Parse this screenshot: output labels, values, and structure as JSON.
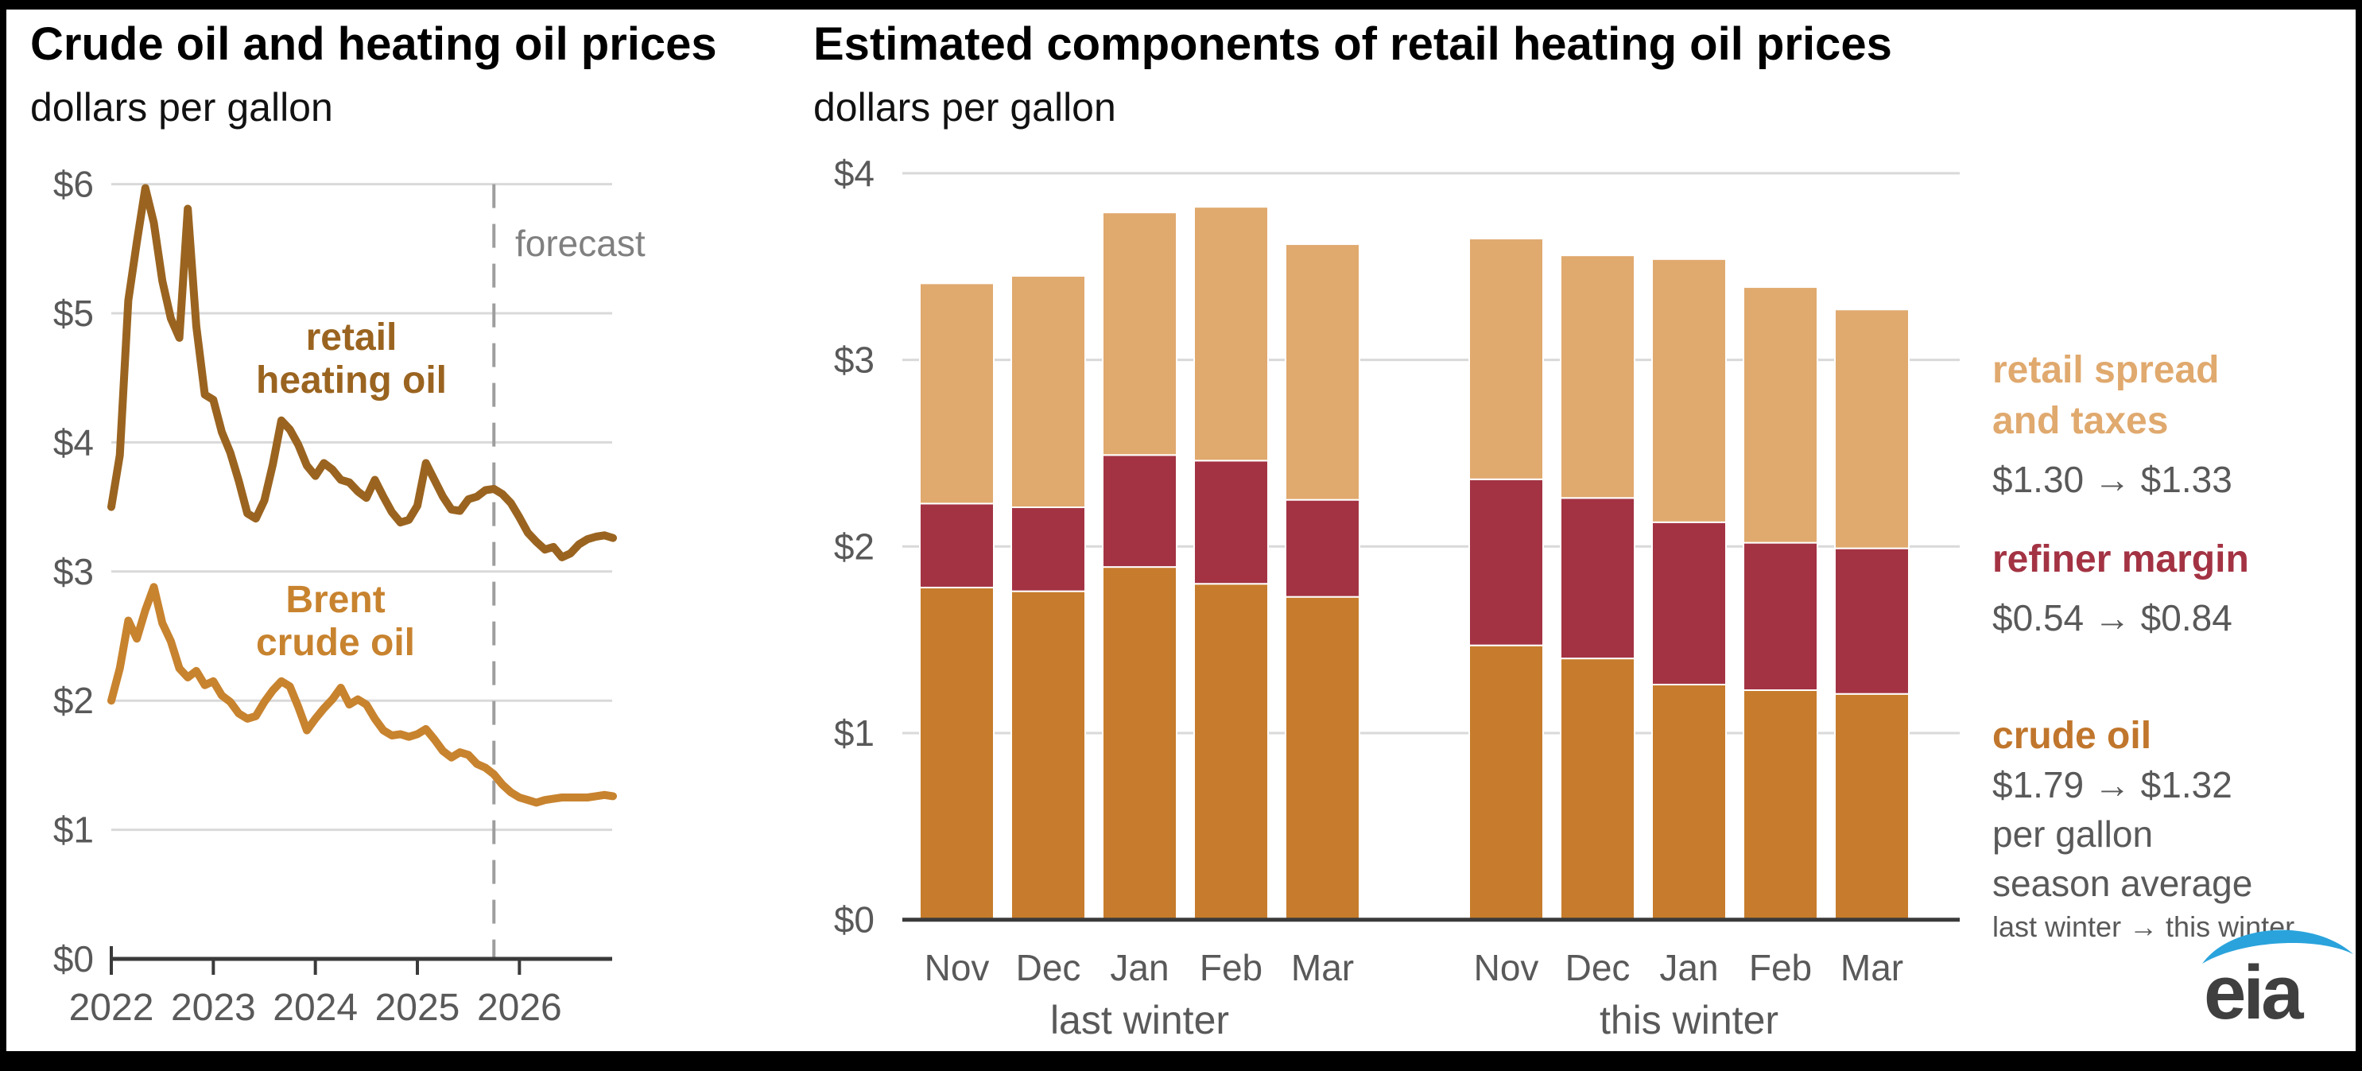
{
  "chart_data": [
    {
      "type": "line",
      "title": "Crude oil and heating oil prices",
      "subtitle": "dollars per gallon",
      "x_start": "2022-01",
      "x_end": "2026-12",
      "x_frequency": "monthly",
      "x_ticks": [
        "2022",
        "2023",
        "2024",
        "2025",
        "2026"
      ],
      "ylim": [
        0,
        6
      ],
      "y_tick_labels": [
        "$0",
        "$1",
        "$2",
        "$3",
        "$4",
        "$5",
        "$6"
      ],
      "grid": "horizontal",
      "forecast_start_index": 45,
      "annotations": {
        "forecast": "forecast",
        "series1_label": [
          "retail",
          "heating oil"
        ],
        "series2_label": [
          "Brent",
          "crude oil"
        ]
      },
      "series": [
        {
          "name": "retail heating oil",
          "color": "#9a6420",
          "values": [
            3.5,
            3.9,
            5.1,
            5.55,
            5.97,
            5.7,
            5.25,
            4.96,
            4.81,
            5.81,
            4.9,
            4.37,
            4.33,
            4.08,
            3.92,
            3.7,
            3.45,
            3.41,
            3.55,
            3.83,
            4.17,
            4.1,
            3.98,
            3.82,
            3.74,
            3.84,
            3.79,
            3.71,
            3.69,
            3.62,
            3.57,
            3.71,
            3.58,
            3.46,
            3.38,
            3.4,
            3.51,
            3.84,
            3.71,
            3.58,
            3.48,
            3.47,
            3.56,
            3.58,
            3.63,
            3.64,
            3.6,
            3.53,
            3.42,
            3.3,
            3.23,
            3.17,
            3.19,
            3.11,
            3.14,
            3.21,
            3.25,
            3.27,
            3.28,
            3.26
          ]
        },
        {
          "name": "Brent crude oil",
          "color": "#c8832f",
          "values": [
            2.0,
            2.25,
            2.62,
            2.48,
            2.7,
            2.88,
            2.6,
            2.46,
            2.25,
            2.18,
            2.23,
            2.12,
            2.15,
            2.04,
            1.99,
            1.9,
            1.86,
            1.88,
            1.99,
            2.08,
            2.15,
            2.11,
            1.95,
            1.77,
            1.86,
            1.94,
            2.01,
            2.1,
            1.97,
            2.01,
            1.97,
            1.86,
            1.77,
            1.73,
            1.74,
            1.72,
            1.74,
            1.78,
            1.7,
            1.61,
            1.56,
            1.6,
            1.58,
            1.51,
            1.48,
            1.43,
            1.35,
            1.29,
            1.25,
            1.23,
            1.21,
            1.23,
            1.24,
            1.25,
            1.25,
            1.25,
            1.25,
            1.26,
            1.27,
            1.26
          ]
        }
      ]
    },
    {
      "type": "stacked_bar",
      "title": "Estimated components of retail heating oil prices",
      "subtitle": "dollars per gallon",
      "group_labels": [
        "last winter",
        "this winter"
      ],
      "categories": [
        "Nov",
        "Dec",
        "Jan",
        "Feb",
        "Mar"
      ],
      "ylim": [
        0,
        4
      ],
      "y_tick_labels": [
        "$0",
        "$1",
        "$2",
        "$3",
        "$4"
      ],
      "grid": "horizontal",
      "series": [
        {
          "name": "crude oil",
          "color": "#c67c2c",
          "values": {
            "last_winter": [
              1.78,
              1.76,
              1.89,
              1.8,
              1.73
            ],
            "this_winter": [
              1.47,
              1.4,
              1.26,
              1.23,
              1.21
            ]
          }
        },
        {
          "name": "refiner margin",
          "color": "#a33343",
          "values": {
            "last_winter": [
              0.45,
              0.45,
              0.6,
              0.66,
              0.52
            ],
            "this_winter": [
              0.89,
              0.86,
              0.87,
              0.79,
              0.78
            ]
          }
        },
        {
          "name": "retail spread and taxes",
          "color": "#e0a96e",
          "values": {
            "last_winter": [
              1.18,
              1.24,
              1.3,
              1.36,
              1.37
            ],
            "this_winter": [
              1.29,
              1.3,
              1.41,
              1.37,
              1.28
            ]
          }
        }
      ],
      "season_averages": {
        "retail_spread_and_taxes": [
          "$1.30",
          "$1.33"
        ],
        "refiner_margin": [
          "$0.54",
          "$0.84"
        ],
        "crude_oil": [
          "$1.79",
          "$1.32"
        ]
      }
    }
  ],
  "legend": {
    "retail": {
      "line1": "retail spread",
      "line2": "and taxes",
      "value": "$1.30 → $1.33",
      "color": "#e0a96e"
    },
    "refiner": {
      "label": "refiner margin",
      "value": "$0.54 → $0.84",
      "color": "#a33343"
    },
    "crude": {
      "label": "crude oil",
      "value": "$1.79 → $1.32",
      "color": "#c0762c"
    },
    "unit_note1": "per gallon",
    "unit_note2": "season average",
    "range_note": "last winter → this winter"
  },
  "logo": {
    "text": "eia",
    "swoosh_color": "#2aa3dc",
    "text_color": "#3f3f3f"
  },
  "style_colors": {
    "grid": "#d9d9d9",
    "axis": "#3a3a3a",
    "tick_text": "#595959",
    "forecast_line": "#9e9e9e",
    "forecast_text": "#808080"
  }
}
